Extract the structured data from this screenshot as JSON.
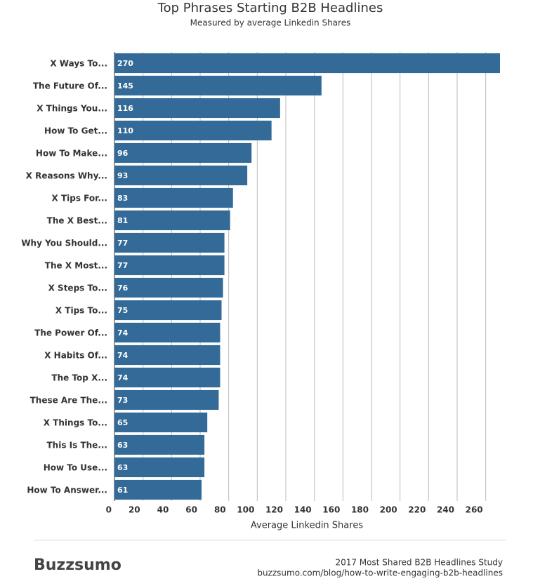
{
  "chart_data": {
    "type": "bar",
    "orientation": "horizontal",
    "title": "Top Phrases Starting B2B Headlines",
    "subtitle": "Measured by average Linkedin Shares",
    "x_label": "Average Linkedin Shares",
    "categories": [
      "X Ways To...",
      "The Future Of...",
      "X Things You...",
      "How To Get...",
      "How To Make...",
      "X Reasons Why...",
      "X Tips For...",
      "The X Best...",
      "Why You Should...",
      "The X Most...",
      "X Steps To...",
      "X Tips To...",
      "The Power Of...",
      "X Habits Of...",
      "The Top X...",
      "These Are The...",
      "X Things To...",
      "This Is The...",
      "How To Use...",
      "How To Answer..."
    ],
    "values": [
      270,
      145,
      116,
      110,
      96,
      93,
      83,
      81,
      77,
      77,
      76,
      75,
      74,
      74,
      74,
      73,
      65,
      63,
      63,
      61
    ],
    "color": "#336a98",
    "xlim": [
      0,
      270
    ],
    "xticks": [
      0,
      20,
      40,
      60,
      80,
      100,
      120,
      140,
      160,
      180,
      200,
      220,
      240,
      260
    ],
    "grid": true
  },
  "footer": {
    "brand": "Buzzsumo",
    "study": "2017 Most Shared B2B Headlines Study",
    "url": "buzzsumo.com/blog/how-to-write-engaging-b2b-headlines"
  }
}
